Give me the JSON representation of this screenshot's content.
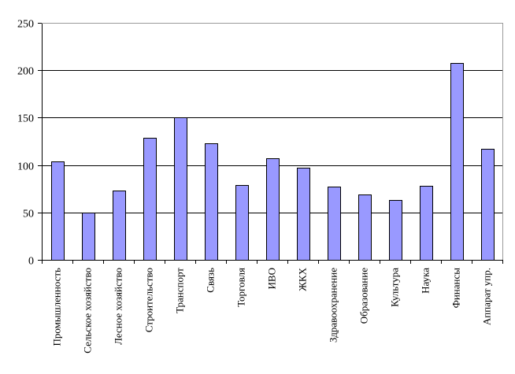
{
  "chart_data": {
    "type": "bar",
    "title": "",
    "xlabel": "",
    "ylabel": "",
    "ylim": [
      0,
      250
    ],
    "yticks": [
      0,
      50,
      100,
      150,
      200,
      250
    ],
    "grid": true,
    "legend": "none",
    "colors": {
      "bar_fill": "#9999ff",
      "bar_stroke": "#000000",
      "gridline": "#000000",
      "background": "#ffffff"
    },
    "categories": [
      "Промышленность",
      "Сельское хозяйство",
      "Лесное хозяйство",
      "Строительство",
      "Транспорт",
      "Связь",
      "Торговля",
      "ИВО",
      "ЖКХ",
      "Здравоохранение",
      "Образование",
      "Культура",
      "Наука",
      "Финансы",
      "Аппарат упр."
    ],
    "values": [
      104,
      50,
      73,
      129,
      150,
      123,
      79,
      107,
      97,
      77,
      69,
      63,
      78,
      208,
      117
    ]
  }
}
